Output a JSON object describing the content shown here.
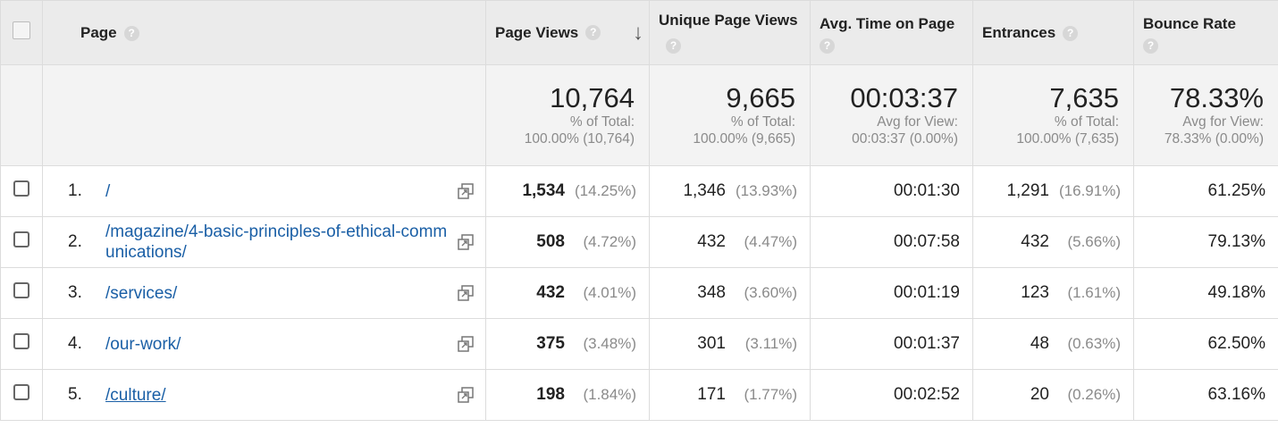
{
  "headers": {
    "page": "Page",
    "page_views": "Page Views",
    "unique_page_views": "Unique Page Views",
    "avg_time": "Avg. Time on Page",
    "entrances": "Entrances",
    "bounce_rate": "Bounce Rate",
    "help_glyph": "?",
    "sort_glyph": "↓"
  },
  "summary": {
    "page_views": {
      "value": "10,764",
      "label": "% of Total:",
      "detail": "100.00% (10,764)"
    },
    "unique_page_views": {
      "value": "9,665",
      "label": "% of Total:",
      "detail": "100.00% (9,665)"
    },
    "avg_time": {
      "value": "00:03:37",
      "label": "Avg for View:",
      "detail": "00:03:37 (0.00%)"
    },
    "entrances": {
      "value": "7,635",
      "label": "% of Total:",
      "detail": "100.00% (7,635)"
    },
    "bounce_rate": {
      "value": "78.33%",
      "label": "Avg for View:",
      "detail": "78.33% (0.00%)"
    }
  },
  "rows": [
    {
      "rank": "1.",
      "url": "/",
      "pv": "1,534",
      "pv_pct": "(14.25%)",
      "upv": "1,346",
      "upv_pct": "(13.93%)",
      "avg_time": "00:01:30",
      "ent": "1,291",
      "ent_pct": "(16.91%)",
      "br": "61.25%"
    },
    {
      "rank": "2.",
      "url": "/magazine/4-basic-principles-of-ethical-communications/",
      "pv": "508",
      "pv_pct": "(4.72%)",
      "upv": "432",
      "upv_pct": "(4.47%)",
      "avg_time": "00:07:58",
      "ent": "432",
      "ent_pct": "(5.66%)",
      "br": "79.13%"
    },
    {
      "rank": "3.",
      "url": "/services/",
      "pv": "432",
      "pv_pct": "(4.01%)",
      "upv": "348",
      "upv_pct": "(3.60%)",
      "avg_time": "00:01:19",
      "ent": "123",
      "ent_pct": "(1.61%)",
      "br": "49.18%"
    },
    {
      "rank": "4.",
      "url": "/our-work/",
      "pv": "375",
      "pv_pct": "(3.48%)",
      "upv": "301",
      "upv_pct": "(3.11%)",
      "avg_time": "00:01:37",
      "ent": "48",
      "ent_pct": "(0.63%)",
      "br": "62.50%"
    },
    {
      "rank": "5.",
      "url": "/culture/",
      "pv": "198",
      "pv_pct": "(1.84%)",
      "upv": "171",
      "upv_pct": "(1.77%)",
      "avg_time": "00:02:52",
      "ent": "20",
      "ent_pct": "(0.26%)",
      "br": "63.16%"
    }
  ],
  "icons": {
    "row_action": "open-in-new-window-icon",
    "help": "help-circle-icon",
    "sort": "sort-descending-arrow-icon"
  },
  "colors": {
    "link": "#1a5fa6",
    "header_bg": "#ebebeb",
    "summary_bg": "#f3f3f3",
    "muted_text": "#8a8a8a"
  }
}
